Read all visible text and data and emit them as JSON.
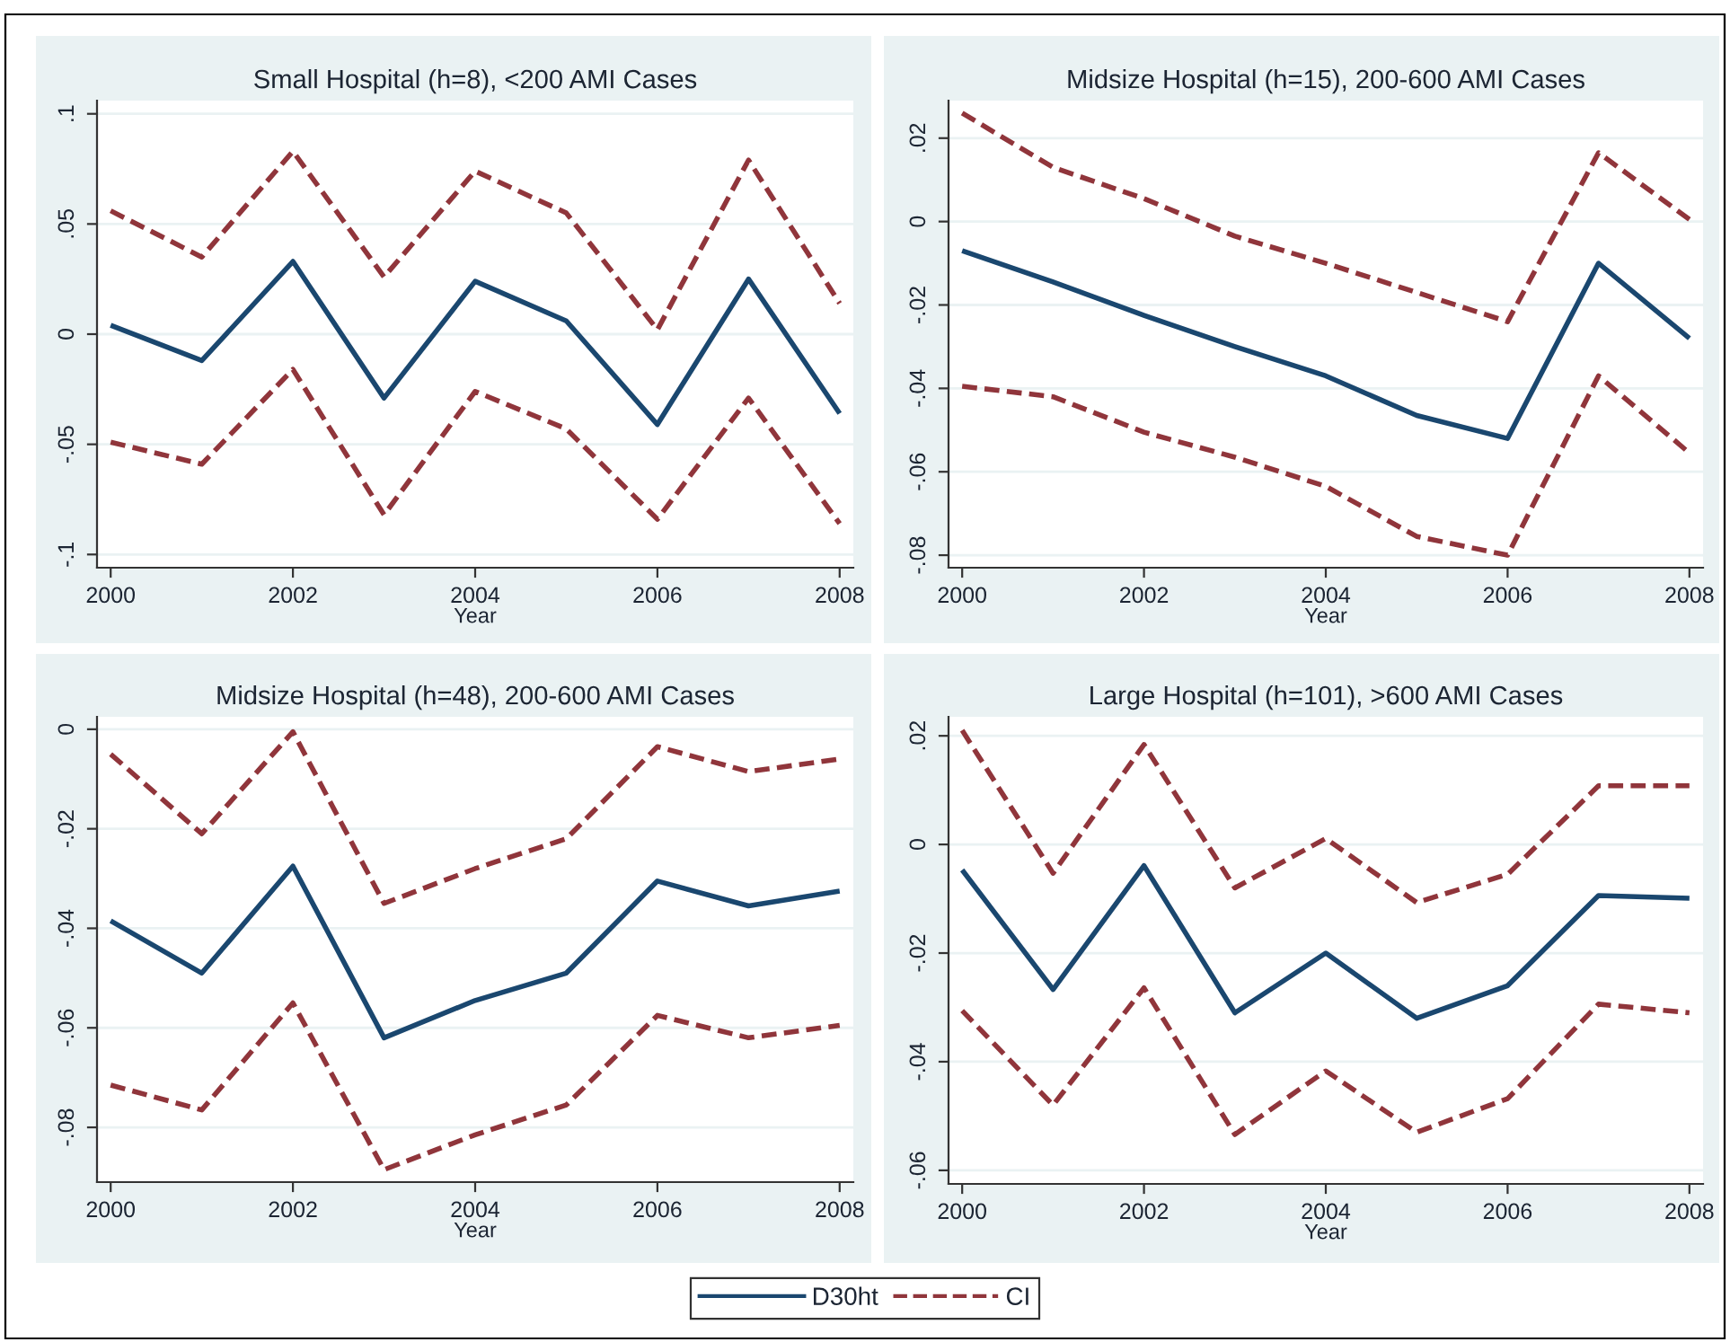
{
  "chart_data": [
    {
      "type": "line",
      "title": "Small Hospital (h=8), <200 AMI Cases",
      "xlabel": "Year",
      "x": [
        2000,
        2001,
        2002,
        2003,
        2004,
        2005,
        2006,
        2007,
        2008
      ],
      "series": [
        {
          "name": "D30ht",
          "color": "#1a476f",
          "line_style": "solid",
          "values": [
            0.004,
            -0.012,
            0.033,
            -0.029,
            0.024,
            0.006,
            -0.041,
            0.025,
            -0.036
          ]
        },
        {
          "name": "CI",
          "color": "#90353b",
          "line_style": "dashed",
          "values": [
            0.056,
            0.035,
            0.083,
            0.026,
            0.074,
            0.055,
            0.002,
            0.079,
            0.014
          ]
        },
        {
          "color": "#90353b",
          "line_style": "dashed",
          "values": [
            -0.049,
            -0.059,
            -0.016,
            -0.082,
            -0.026,
            -0.043,
            -0.084,
            -0.029,
            -0.086
          ]
        }
      ],
      "xlim": [
        1999.85,
        2008.15
      ],
      "xticks": [
        2000,
        2002,
        2004,
        2006,
        2008
      ],
      "ylim": [
        -0.106,
        0.106
      ],
      "yticks": [
        {
          "value": -0.1,
          "label": "-.1"
        },
        {
          "value": -0.05,
          "label": "-.05"
        },
        0,
        {
          "value": 0.05,
          "label": ".05"
        },
        {
          "value": 0.1,
          "label": ".1"
        }
      ],
      "grid": "y",
      "legend": "bottom"
    },
    {
      "type": "line",
      "title": "Midsize Hospital (h=15), 200-600 AMI Cases",
      "xlabel": "Year",
      "x": [
        2000,
        2001,
        2002,
        2003,
        2004,
        2005,
        2006,
        2007,
        2008
      ],
      "series": [
        {
          "color": "#1a476f",
          "line_style": "solid",
          "values": [
            -0.007,
            -0.0145,
            -0.0225,
            -0.03,
            -0.037,
            -0.0465,
            -0.052,
            -0.01,
            -0.028
          ]
        },
        {
          "color": "#90353b",
          "line_style": "dashed",
          "values": [
            0.026,
            0.013,
            0.0055,
            -0.0035,
            -0.01,
            -0.017,
            -0.024,
            0.0165,
            0.0005
          ]
        },
        {
          "color": "#90353b",
          "line_style": "dashed",
          "values": [
            -0.0395,
            -0.042,
            -0.0505,
            -0.0565,
            -0.0635,
            -0.0755,
            -0.08,
            -0.037,
            -0.0555
          ]
        }
      ],
      "xlim": [
        1999.85,
        2008.15
      ],
      "xticks": [
        2000,
        2002,
        2004,
        2006,
        2008
      ],
      "ylim": [
        -0.083,
        0.029
      ],
      "yticks": [
        {
          "value": -0.08,
          "label": "-.08"
        },
        {
          "value": -0.06,
          "label": "-.06"
        },
        {
          "value": -0.04,
          "label": "-.04"
        },
        {
          "value": -0.02,
          "label": "-.02"
        },
        0,
        {
          "value": 0.02,
          "label": ".02"
        }
      ],
      "grid": "y"
    },
    {
      "type": "line",
      "title": "Midsize Hospital (h=48), 200-600 AMI Cases",
      "xlabel": "Year",
      "x": [
        2000,
        2001,
        2002,
        2003,
        2004,
        2005,
        2006,
        2007,
        2008
      ],
      "series": [
        {
          "color": "#1a476f",
          "line_style": "solid",
          "values": [
            -0.0385,
            -0.049,
            -0.0275,
            -0.062,
            -0.0545,
            -0.049,
            -0.0305,
            -0.0355,
            -0.0325
          ]
        },
        {
          "color": "#90353b",
          "line_style": "dashed",
          "values": [
            -0.005,
            -0.021,
            -0.0005,
            -0.035,
            -0.028,
            -0.022,
            -0.0035,
            -0.0085,
            -0.006
          ]
        },
        {
          "color": "#90353b",
          "line_style": "dashed",
          "values": [
            -0.0715,
            -0.0765,
            -0.055,
            -0.0885,
            -0.0815,
            -0.0755,
            -0.0575,
            -0.062,
            -0.0595
          ]
        }
      ],
      "xlim": [
        1999.85,
        2008.15
      ],
      "xticks": [
        2000,
        2002,
        2004,
        2006,
        2008
      ],
      "ylim": [
        -0.091,
        0.0025
      ],
      "yticks": [
        {
          "value": -0.08,
          "label": "-.08"
        },
        {
          "value": -0.06,
          "label": "-.06"
        },
        {
          "value": -0.04,
          "label": "-.04"
        },
        {
          "value": -0.02,
          "label": "-.02"
        },
        0
      ],
      "grid": "y"
    },
    {
      "type": "line",
      "title": "Large Hospital (h=101), >600 AMI Cases",
      "xlabel": "Year",
      "x": [
        2000,
        2001,
        2002,
        2003,
        2004,
        2005,
        2006,
        2007,
        2008
      ],
      "series": [
        {
          "color": "#1a476f",
          "line_style": "solid",
          "values": [
            -0.0047,
            -0.0267,
            -0.0039,
            -0.031,
            -0.02,
            -0.032,
            -0.026,
            -0.0094,
            -0.0099
          ]
        },
        {
          "color": "#90353b",
          "line_style": "dashed",
          "values": [
            0.021,
            -0.0053,
            0.0184,
            -0.008,
            0.0011,
            -0.0107,
            -0.0055,
            0.0108,
            0.0108
          ]
        },
        {
          "color": "#90353b",
          "line_style": "dashed",
          "values": [
            -0.0306,
            -0.048,
            -0.0264,
            -0.0534,
            -0.0417,
            -0.053,
            -0.0468,
            -0.0294,
            -0.031
          ]
        }
      ],
      "xlim": [
        1999.85,
        2008.15
      ],
      "xticks": [
        2000,
        2002,
        2004,
        2006,
        2008
      ],
      "ylim": [
        -0.0625,
        0.0235
      ],
      "yticks": [
        {
          "value": -0.06,
          "label": "-.06"
        },
        {
          "value": -0.04,
          "label": "-.04"
        },
        {
          "value": -0.02,
          "label": "-.02"
        },
        0,
        {
          "value": 0.02,
          "label": ".02"
        }
      ],
      "grid": "y"
    }
  ]
}
